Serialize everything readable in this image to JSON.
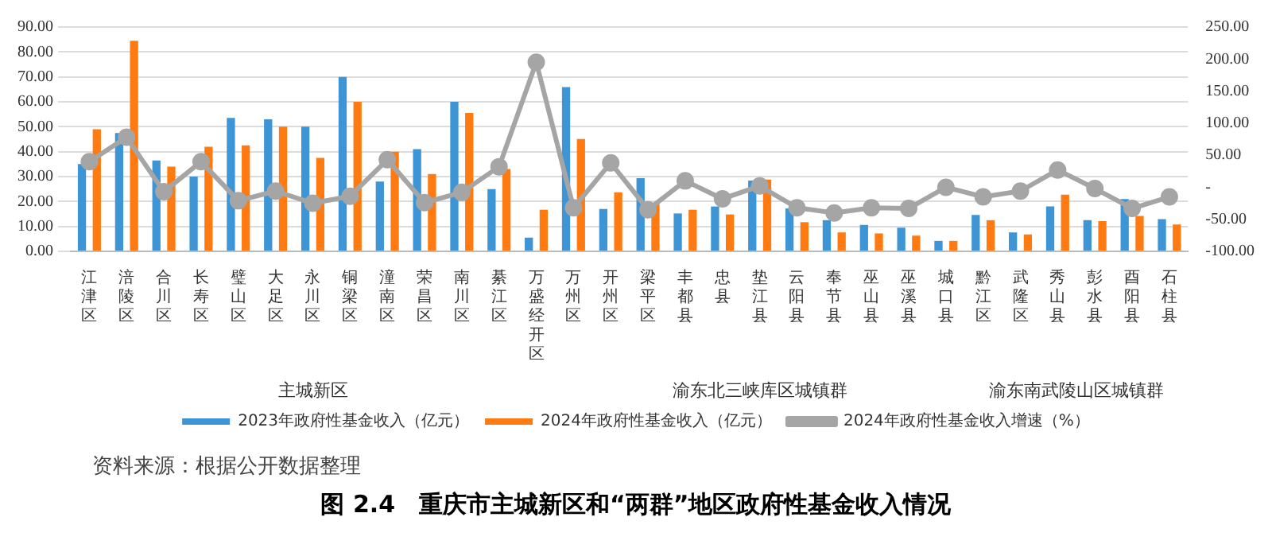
{
  "chart_data": {
    "type": "bar",
    "title": "图 2.4　重庆市主城新区和“两群”地区政府性基金收入情况",
    "categories": [
      "江津区",
      "涪陵区",
      "合川区",
      "长寿区",
      "璧山区",
      "大足区",
      "永川区",
      "铜梁区",
      "潼南区",
      "荣昌区",
      "南川区",
      "綦江区",
      "万盛经开区",
      "万州区",
      "开州区",
      "梁平区",
      "丰都县",
      "忠县",
      "垫江县",
      "云阳县",
      "奉节县",
      "巫山县",
      "巫溪县",
      "城口县",
      "黔江区",
      "武隆区",
      "秀山县",
      "彭水县",
      "酉阳县",
      "石柱县"
    ],
    "series": [
      {
        "name": "2023年政府性基金收入（亿元）",
        "color": "#3e95d6",
        "values": [
          35,
          47.5,
          36.5,
          30,
          53.5,
          53,
          50,
          70,
          28,
          41,
          60,
          25,
          5.5,
          65.9,
          17,
          29.4,
          15.2,
          18,
          28.4,
          17.2,
          12.5,
          10.6,
          9.5,
          4.2,
          14.6,
          7.6,
          18,
          12.5,
          21,
          12.9
        ]
      },
      {
        "name": "2024年政府性基金收入（亿元）",
        "color": "#ff7b12",
        "values": [
          49,
          84.5,
          34,
          42,
          42.5,
          50,
          37.5,
          60,
          40,
          31,
          55.5,
          33,
          16.7,
          45.1,
          23.7,
          19,
          16.7,
          14.8,
          28.8,
          11.7,
          7.6,
          7.2,
          6.3,
          4.2,
          12.5,
          6.8,
          22.7,
          12.1,
          14.2,
          10.8
        ]
      },
      {
        "name": "2024年政府性基金收入增速（%）",
        "type": "line",
        "axis": "y2",
        "color": "#a5a5a5",
        "marker": "circle",
        "values": [
          40,
          78,
          -7,
          40,
          -21,
          -6,
          -25,
          -14,
          43,
          -24,
          -8,
          32,
          195,
          -32,
          38,
          -35,
          10,
          -18,
          2,
          -32,
          -40,
          -32,
          -33,
          0,
          -15,
          -6,
          27,
          -2,
          -33,
          -15
        ]
      }
    ],
    "ylim": [
      0,
      90
    ],
    "yticks": [
      {
        "value": 0,
        "label": "0.00"
      },
      {
        "value": 10,
        "label": "10.00"
      },
      {
        "value": 20,
        "label": "20.00"
      },
      {
        "value": 30,
        "label": "30.00"
      },
      {
        "value": 40,
        "label": "40.00"
      },
      {
        "value": 50,
        "label": "50.00"
      },
      {
        "value": 60,
        "label": "60.00"
      },
      {
        "value": 70,
        "label": "70.00"
      },
      {
        "value": 80,
        "label": "80.00"
      },
      {
        "value": 90,
        "label": "90.00"
      }
    ],
    "y2lim": [
      -100,
      250
    ],
    "y2ticks": [
      {
        "value": -100,
        "label": "-100.00"
      },
      {
        "value": -50,
        "label": "-50.00"
      },
      {
        "value": 0,
        "label": "-"
      },
      {
        "value": 50,
        "label": "50.00"
      },
      {
        "value": 100,
        "label": "100.00"
      },
      {
        "value": 150,
        "label": "150.00"
      },
      {
        "value": 200,
        "label": "200.00"
      },
      {
        "value": 250,
        "label": "250.00"
      }
    ],
    "grid": "y",
    "legend": "bottom",
    "annotations": [
      "主城新区",
      "渝东北三峡库区城镇群",
      "渝东南武陵山区城镇群",
      "资料来源：根据公开数据整理"
    ]
  }
}
